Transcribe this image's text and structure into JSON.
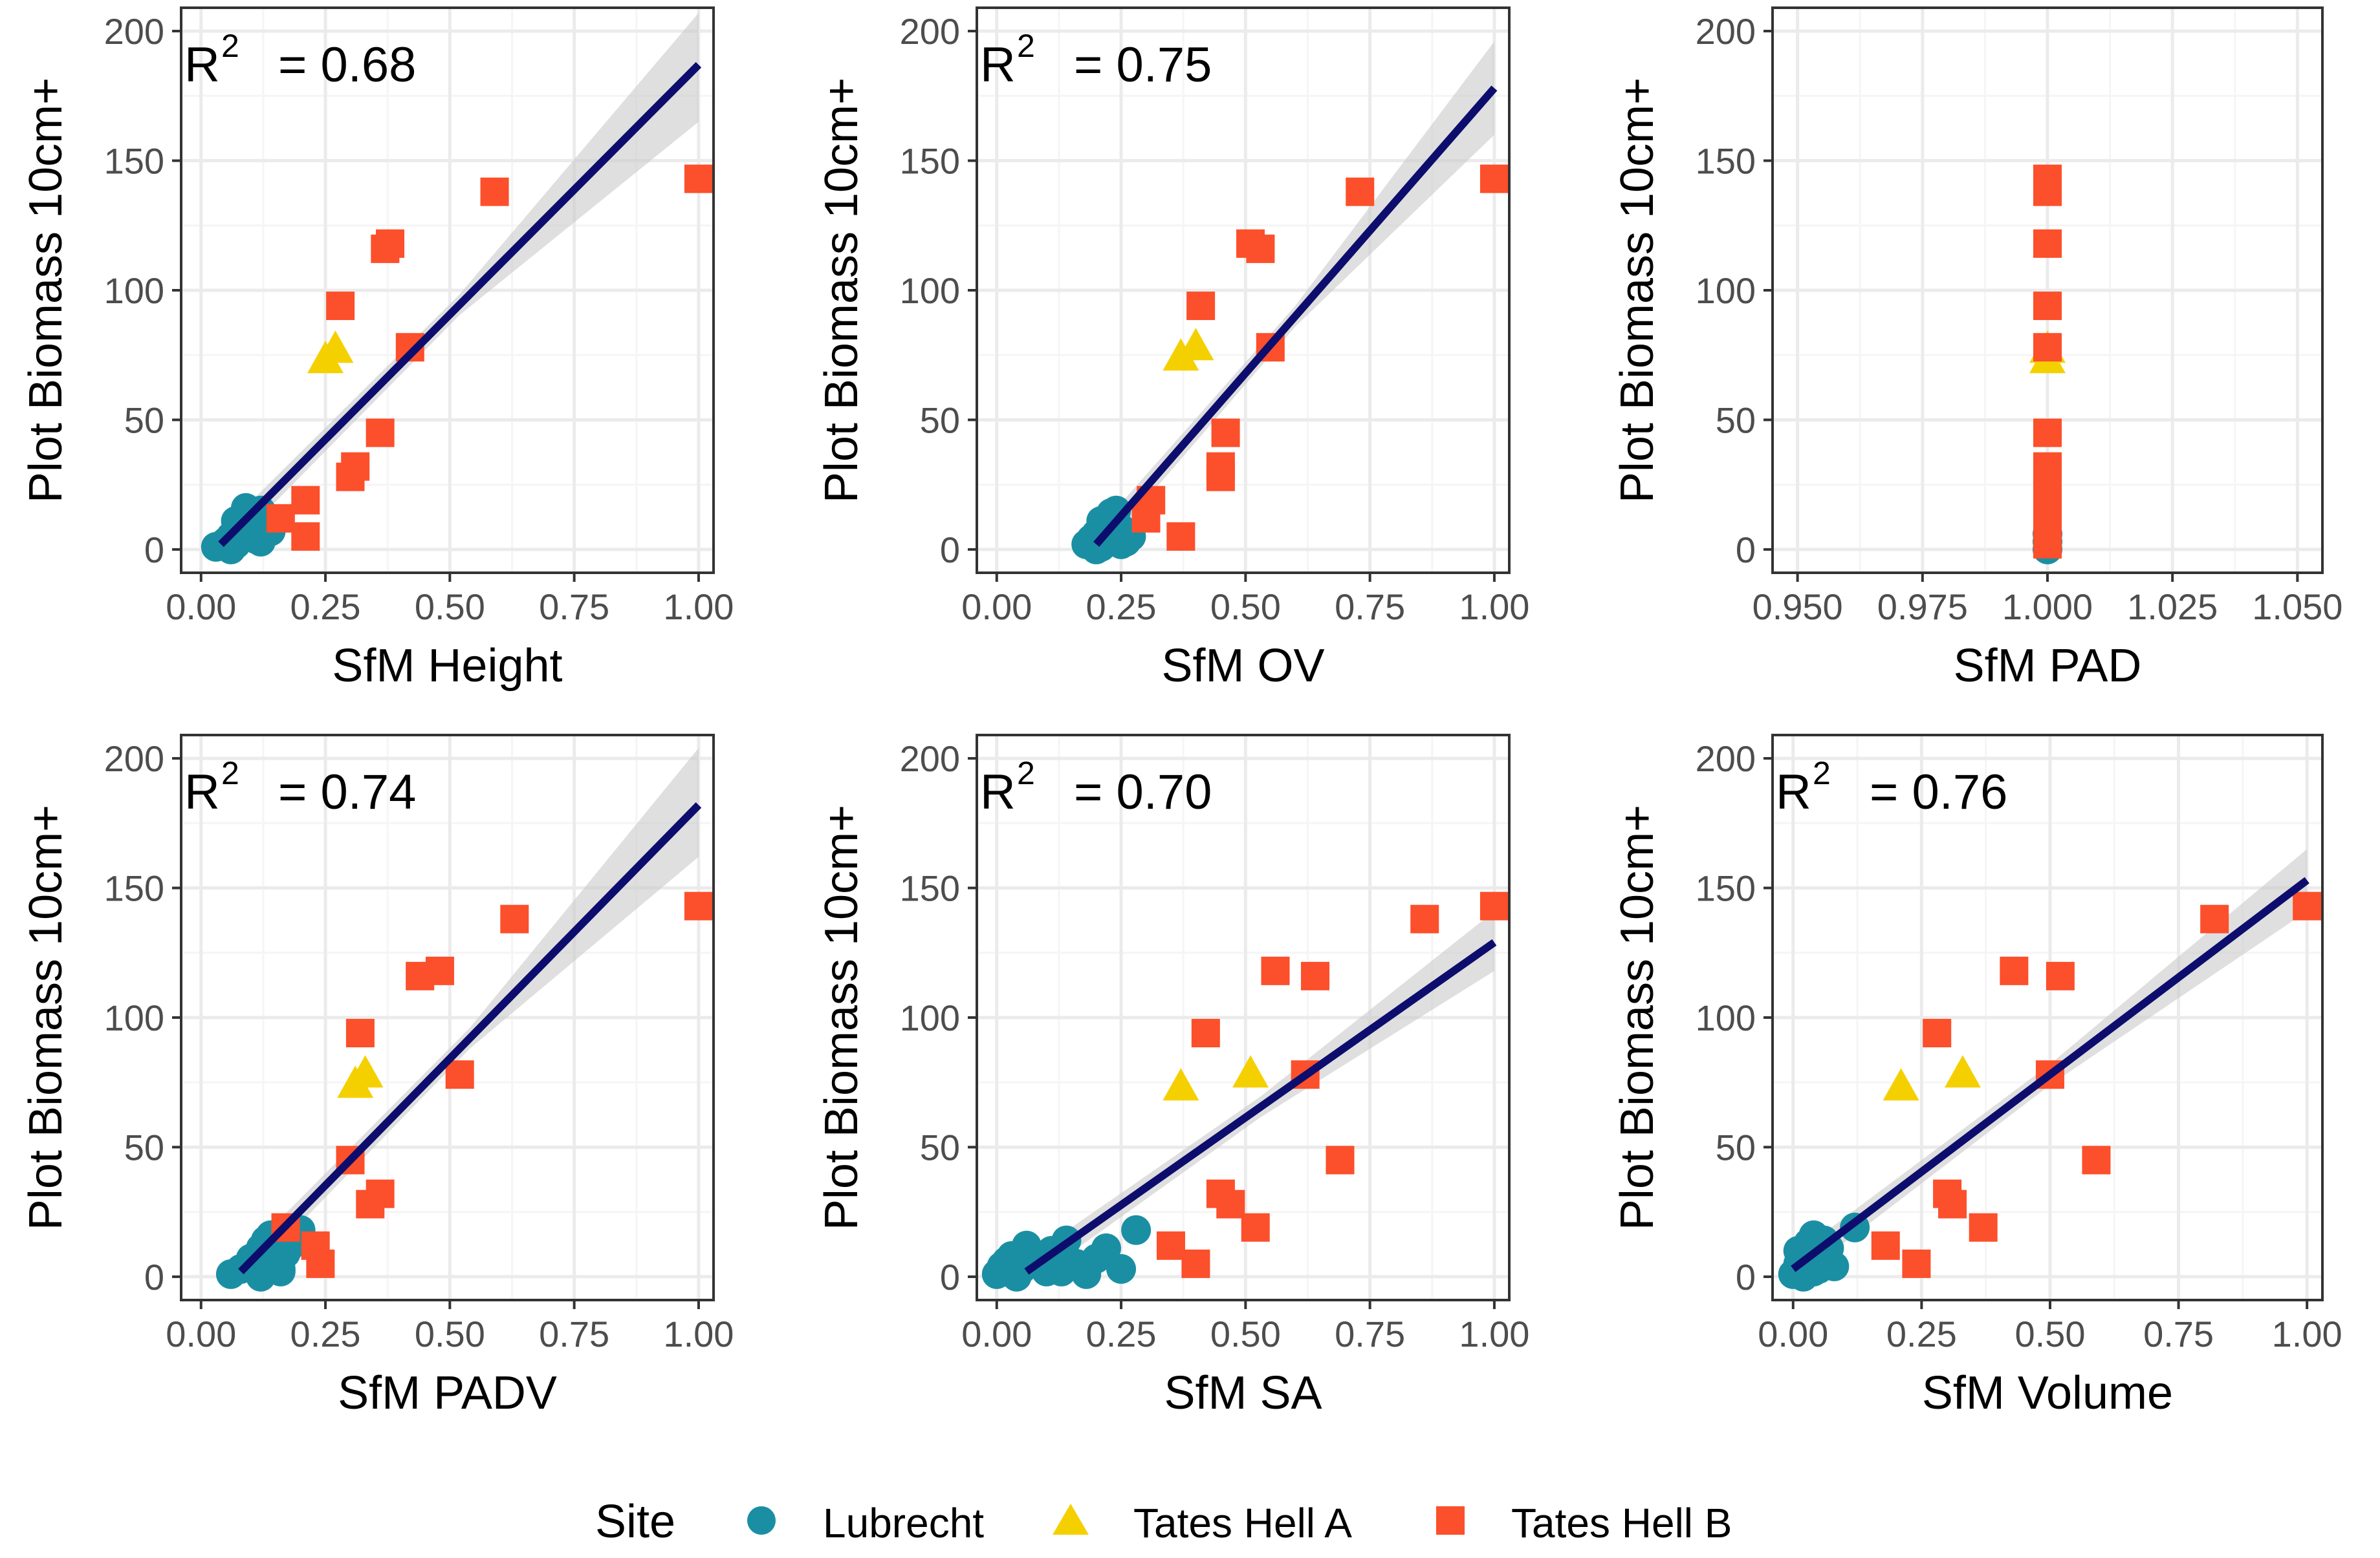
{
  "figure": {
    "legend": {
      "title": "Site",
      "entries": [
        {
          "label": "Lubrecht",
          "shape": "circle",
          "color": "#1a8fa3"
        },
        {
          "label": "Tates Hell A",
          "shape": "triangle",
          "color": "#f5d000"
        },
        {
          "label": "Tates Hell B",
          "shape": "square",
          "color": "#fc4f2b"
        }
      ]
    },
    "colors": {
      "fit_line": "#0d0d6e",
      "ribbon": "#c9c9c9",
      "grid_major": "#ebebeb",
      "grid_minor": "#f5f5f5",
      "panel_border": "#333333",
      "tick_text": "#4d4d4d"
    }
  },
  "chart_data": [
    {
      "type": "scatter",
      "title": "",
      "xlabel": "SfM Height",
      "ylabel": "Plot Biomass 10cm+",
      "r2_label": "= 0.68",
      "xlim": [
        -0.04,
        1.03
      ],
      "ylim": [
        -9,
        209
      ],
      "xticks": [
        0,
        0.25,
        0.5,
        0.75,
        1.0
      ],
      "xtick_labels": [
        "0.00",
        "0.25",
        "0.50",
        "0.75",
        "1.00"
      ],
      "yticks": [
        0,
        50,
        100,
        150,
        200
      ],
      "ytick_labels": [
        "0",
        "50",
        "100",
        "150",
        "200"
      ],
      "fit": {
        "x": [
          0.04,
          1.0
        ],
        "y": [
          2,
          187
        ],
        "ribbon_lo_end": 165,
        "ribbon_hi_end": 207
      },
      "series": [
        {
          "name": "Lubrecht",
          "shape": "circle",
          "x": [
            0.03,
            0.05,
            0.06,
            0.07,
            0.08,
            0.09,
            0.1,
            0.11,
            0.12,
            0.13,
            0.07,
            0.09,
            0.11,
            0.14,
            0.06,
            0.1,
            0.12,
            0.08
          ],
          "y": [
            1,
            3,
            5,
            2,
            8,
            12,
            14,
            6,
            3,
            9,
            11,
            16,
            4,
            7,
            0,
            10,
            15,
            4
          ]
        },
        {
          "name": "Tates Hell A",
          "shape": "triangle",
          "x": [
            0.25,
            0.27
          ],
          "y": [
            73,
            77
          ]
        },
        {
          "name": "Tates Hell B",
          "shape": "square",
          "x": [
            1.0,
            0.59,
            0.38,
            0.37,
            0.28,
            0.42,
            0.36,
            0.31,
            0.3,
            0.21,
            0.16,
            0.21
          ],
          "y": [
            143,
            138,
            118,
            116,
            94,
            78,
            45,
            32,
            28,
            19,
            12,
            5
          ]
        }
      ]
    },
    {
      "type": "scatter",
      "title": "",
      "xlabel": "SfM OV",
      "ylabel": "Plot Biomass 10cm+",
      "r2_label": "= 0.75",
      "xlim": [
        -0.04,
        1.03
      ],
      "ylim": [
        -9,
        209
      ],
      "xticks": [
        0,
        0.25,
        0.5,
        0.75,
        1.0
      ],
      "xtick_labels": [
        "0.00",
        "0.25",
        "0.50",
        "0.75",
        "1.00"
      ],
      "yticks": [
        0,
        50,
        100,
        150,
        200
      ],
      "ytick_labels": [
        "0",
        "50",
        "100",
        "150",
        "200"
      ],
      "fit": {
        "x": [
          0.2,
          1.0
        ],
        "y": [
          2,
          178
        ],
        "ribbon_lo_end": 160,
        "ribbon_hi_end": 196
      },
      "series": [
        {
          "name": "Lubrecht",
          "shape": "circle",
          "x": [
            0.18,
            0.19,
            0.2,
            0.21,
            0.22,
            0.23,
            0.24,
            0.25,
            0.26,
            0.27,
            0.21,
            0.23,
            0.25,
            0.2,
            0.22,
            0.24
          ],
          "y": [
            2,
            4,
            6,
            1,
            9,
            12,
            15,
            8,
            3,
            5,
            11,
            14,
            2,
            0,
            7,
            10
          ]
        },
        {
          "name": "Tates Hell A",
          "shape": "triangle",
          "x": [
            0.37,
            0.4
          ],
          "y": [
            74,
            78
          ]
        },
        {
          "name": "Tates Hell B",
          "shape": "square",
          "x": [
            1.0,
            0.73,
            0.51,
            0.53,
            0.41,
            0.55,
            0.46,
            0.45,
            0.45,
            0.31,
            0.3,
            0.37
          ],
          "y": [
            143,
            138,
            118,
            116,
            94,
            78,
            45,
            32,
            28,
            19,
            12,
            5
          ]
        }
      ]
    },
    {
      "type": "scatter",
      "title": "",
      "xlabel": "SfM PAD",
      "ylabel": "Plot Biomass 10cm+",
      "r2_label": "",
      "xlim": [
        0.945,
        1.055
      ],
      "ylim": [
        -9,
        209
      ],
      "xticks": [
        0.95,
        0.975,
        1.0,
        1.025,
        1.05
      ],
      "xtick_labels": [
        "0.950",
        "0.975",
        "1.000",
        "1.025",
        "1.050"
      ],
      "yticks": [
        0,
        50,
        100,
        150,
        200
      ],
      "ytick_labels": [
        "0",
        "50",
        "100",
        "150",
        "200"
      ],
      "fit": null,
      "series": [
        {
          "name": "Lubrecht",
          "shape": "circle",
          "x": [
            1.0,
            1.0,
            1.0
          ],
          "y": [
            0,
            3,
            6
          ]
        },
        {
          "name": "Tates Hell A",
          "shape": "triangle",
          "x": [
            1.0,
            1.0
          ],
          "y": [
            73,
            77
          ]
        },
        {
          "name": "Tates Hell B",
          "shape": "square",
          "x": [
            1.0,
            1.0,
            1.0,
            1.0,
            1.0,
            1.0,
            1.0,
            1.0,
            1.0,
            1.0,
            1.0,
            1.0,
            1.0,
            1.0,
            1.0
          ],
          "y": [
            143,
            138,
            118,
            94,
            78,
            45,
            32,
            28,
            22,
            19,
            15,
            12,
            9,
            5,
            2
          ]
        }
      ]
    },
    {
      "type": "scatter",
      "title": "",
      "xlabel": "SfM PADV",
      "ylabel": "Plot Biomass 10cm+",
      "r2_label": "= 0.74",
      "xlim": [
        -0.04,
        1.03
      ],
      "ylim": [
        -9,
        209
      ],
      "xticks": [
        0,
        0.25,
        0.5,
        0.75,
        1.0
      ],
      "xtick_labels": [
        "0.00",
        "0.25",
        "0.50",
        "0.75",
        "1.00"
      ],
      "yticks": [
        0,
        50,
        100,
        150,
        200
      ],
      "ytick_labels": [
        "0",
        "50",
        "100",
        "150",
        "200"
      ],
      "fit": {
        "x": [
          0.08,
          1.0
        ],
        "y": [
          2,
          182
        ],
        "ribbon_lo_end": 162,
        "ribbon_hi_end": 204
      },
      "series": [
        {
          "name": "Lubrecht",
          "shape": "circle",
          "x": [
            0.06,
            0.08,
            0.1,
            0.11,
            0.12,
            0.13,
            0.14,
            0.15,
            0.16,
            0.17,
            0.18,
            0.2,
            0.12,
            0.14,
            0.16,
            0.1
          ],
          "y": [
            1,
            3,
            4,
            8,
            11,
            14,
            16,
            6,
            2,
            9,
            12,
            18,
            0,
            5,
            3,
            7
          ]
        },
        {
          "name": "Tates Hell A",
          "shape": "triangle",
          "x": [
            0.31,
            0.33
          ],
          "y": [
            74,
            78
          ]
        },
        {
          "name": "Tates Hell B",
          "shape": "square",
          "x": [
            1.0,
            0.63,
            0.48,
            0.44,
            0.32,
            0.52,
            0.3,
            0.36,
            0.34,
            0.17,
            0.23,
            0.24
          ],
          "y": [
            143,
            138,
            118,
            116,
            94,
            78,
            45,
            32,
            28,
            19,
            12,
            5
          ]
        }
      ]
    },
    {
      "type": "scatter",
      "title": "",
      "xlabel": "SfM SA",
      "ylabel": "Plot Biomass 10cm+",
      "r2_label": "= 0.70",
      "xlim": [
        -0.04,
        1.03
      ],
      "ylim": [
        -9,
        209
      ],
      "xticks": [
        0,
        0.25,
        0.5,
        0.75,
        1.0
      ],
      "xtick_labels": [
        "0.00",
        "0.25",
        "0.50",
        "0.75",
        "1.00"
      ],
      "yticks": [
        0,
        50,
        100,
        150,
        200
      ],
      "ytick_labels": [
        "0",
        "50",
        "100",
        "150",
        "200"
      ],
      "fit": {
        "x": [
          0.06,
          1.0
        ],
        "y": [
          2,
          129
        ],
        "ribbon_lo_end": 118,
        "ribbon_hi_end": 141
      },
      "series": [
        {
          "name": "Lubrecht",
          "shape": "circle",
          "x": [
            0.0,
            0.01,
            0.03,
            0.05,
            0.06,
            0.08,
            0.1,
            0.12,
            0.14,
            0.16,
            0.18,
            0.2,
            0.22,
            0.25,
            0.28,
            0.04,
            0.11,
            0.17,
            0.02,
            0.13
          ],
          "y": [
            1,
            4,
            8,
            3,
            12,
            6,
            2,
            9,
            14,
            5,
            1,
            7,
            11,
            3,
            18,
            0,
            10,
            4,
            6,
            2
          ]
        },
        {
          "name": "Tates Hell A",
          "shape": "triangle",
          "x": [
            0.37,
            0.51
          ],
          "y": [
            73,
            78
          ]
        },
        {
          "name": "Tates Hell B",
          "shape": "square",
          "x": [
            1.0,
            0.86,
            0.56,
            0.64,
            0.42,
            0.62,
            0.69,
            0.45,
            0.47,
            0.52,
            0.35,
            0.4
          ],
          "y": [
            143,
            138,
            118,
            116,
            94,
            78,
            45,
            32,
            28,
            19,
            12,
            5
          ]
        }
      ]
    },
    {
      "type": "scatter",
      "title": "",
      "xlabel": "SfM Volume",
      "ylabel": "Plot Biomass 10cm+",
      "r2_label": "= 0.76",
      "xlim": [
        -0.04,
        1.03
      ],
      "ylim": [
        -9,
        209
      ],
      "xticks": [
        0,
        0.25,
        0.5,
        0.75,
        1.0
      ],
      "xtick_labels": [
        "0.00",
        "0.25",
        "0.50",
        "0.75",
        "1.00"
      ],
      "yticks": [
        0,
        50,
        100,
        150,
        200
      ],
      "ytick_labels": [
        "0",
        "50",
        "100",
        "150",
        "200"
      ],
      "fit": {
        "x": [
          0.0,
          1.0
        ],
        "y": [
          3,
          153
        ],
        "ribbon_lo_end": 141,
        "ribbon_hi_end": 165
      },
      "series": [
        {
          "name": "Lubrecht",
          "shape": "circle",
          "x": [
            0.0,
            0.01,
            0.02,
            0.03,
            0.04,
            0.05,
            0.06,
            0.07,
            0.08,
            0.02,
            0.04,
            0.06,
            0.12,
            0.01,
            0.03,
            0.05
          ],
          "y": [
            1,
            5,
            9,
            13,
            16,
            3,
            7,
            11,
            4,
            0,
            2,
            14,
            19,
            10,
            6,
            8
          ]
        },
        {
          "name": "Tates Hell A",
          "shape": "triangle",
          "x": [
            0.21,
            0.33
          ],
          "y": [
            73,
            78
          ]
        },
        {
          "name": "Tates Hell B",
          "shape": "square",
          "x": [
            1.0,
            0.82,
            0.43,
            0.52,
            0.28,
            0.5,
            0.59,
            0.3,
            0.31,
            0.37,
            0.18,
            0.24
          ],
          "y": [
            143,
            138,
            118,
            116,
            94,
            78,
            45,
            32,
            28,
            19,
            12,
            5
          ]
        }
      ]
    }
  ]
}
